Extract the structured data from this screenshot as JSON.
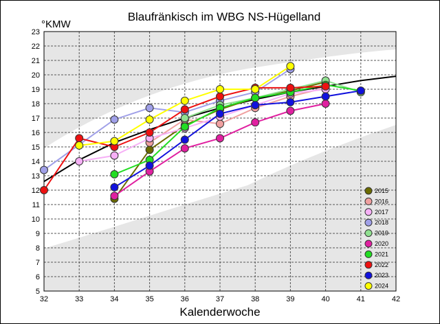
{
  "chart_data": {
    "type": "line",
    "title": "Blaufränkisch im WBG NS-Hügelland",
    "ylabel": "°KMW",
    "xlabel": "Kalenderwoche",
    "xlim": [
      32,
      42
    ],
    "ylim": [
      5,
      23
    ],
    "xticks": [
      32,
      33,
      34,
      35,
      36,
      37,
      38,
      39,
      40,
      41,
      42
    ],
    "yticks": [
      5,
      6,
      7,
      8,
      9,
      10,
      11,
      12,
      13,
      14,
      15,
      16,
      17,
      18,
      19,
      20,
      21,
      22,
      23
    ],
    "grid": true,
    "legend": "bottom-right",
    "trend": {
      "name": "",
      "color": "#000000",
      "x": [
        32,
        33,
        34,
        35,
        36,
        37,
        38,
        39,
        40,
        41,
        42
      ],
      "y": [
        12.6,
        14.1,
        15.3,
        16.2,
        17.0,
        17.7,
        18.3,
        18.8,
        19.2,
        19.6,
        19.9
      ]
    },
    "series": [
      {
        "name": "2015",
        "color": "#6b6b00",
        "x": [
          34,
          35,
          36,
          37,
          38,
          39,
          40
        ],
        "y": [
          11.4,
          14.8,
          16.5,
          17.6,
          18.4,
          18.9,
          19.5
        ]
      },
      {
        "name": "2016",
        "color": "#f0a0a0",
        "x": [
          35,
          36,
          37,
          38,
          39,
          40
        ],
        "y": [
          15.3,
          16.9,
          16.6,
          17.7,
          18.5,
          19.1
        ]
      },
      {
        "name": "2017",
        "color": "#f6b0f6",
        "x": [
          33,
          34,
          35,
          36,
          37,
          38,
          39,
          40
        ],
        "y": [
          14.0,
          14.4,
          15.6,
          16.3,
          17.1,
          17.9,
          18.7,
          19.0
        ]
      },
      {
        "name": "2018",
        "color": "#a0a0e8",
        "x": [
          32,
          34,
          35,
          36,
          37,
          38,
          39
        ],
        "y": [
          13.4,
          16.9,
          17.7,
          17.4,
          18.2,
          18.8,
          20.4
        ]
      },
      {
        "name": "2019",
        "color": "#90e090",
        "x": [
          36,
          37,
          38,
          39,
          40,
          41
        ],
        "y": [
          17.0,
          17.9,
          18.4,
          19.0,
          19.6,
          18.8
        ]
      },
      {
        "name": "2020",
        "color": "#e020a0",
        "x": [
          34,
          35,
          36,
          37,
          38,
          39,
          40
        ],
        "y": [
          11.6,
          13.3,
          14.9,
          15.6,
          16.7,
          17.5,
          18.0
        ]
      },
      {
        "name": "2021",
        "color": "#22dd22",
        "x": [
          34,
          35,
          36,
          37,
          38,
          39,
          40,
          41
        ],
        "y": [
          13.1,
          14.1,
          16.4,
          17.7,
          18.4,
          18.8,
          19.3,
          18.9
        ]
      },
      {
        "name": "2022",
        "color": "#ee1111",
        "x": [
          32,
          33,
          34,
          35,
          36,
          37,
          38,
          39,
          40
        ],
        "y": [
          12.0,
          15.6,
          15.0,
          16.0,
          17.6,
          18.5,
          19.1,
          19.1,
          19.2
        ]
      },
      {
        "name": "2023",
        "color": "#1111dd",
        "x": [
          34,
          35,
          36,
          37,
          38,
          39,
          40,
          41
        ],
        "y": [
          12.2,
          13.7,
          15.5,
          17.3,
          17.9,
          18.1,
          18.5,
          18.9
        ]
      },
      {
        "name": "2024",
        "color": "#ffff00",
        "x": [
          33,
          34,
          35,
          36,
          37,
          38,
          39
        ],
        "y": [
          15.1,
          15.4,
          16.9,
          18.2,
          19.0,
          19.0,
          20.6
        ]
      }
    ]
  }
}
